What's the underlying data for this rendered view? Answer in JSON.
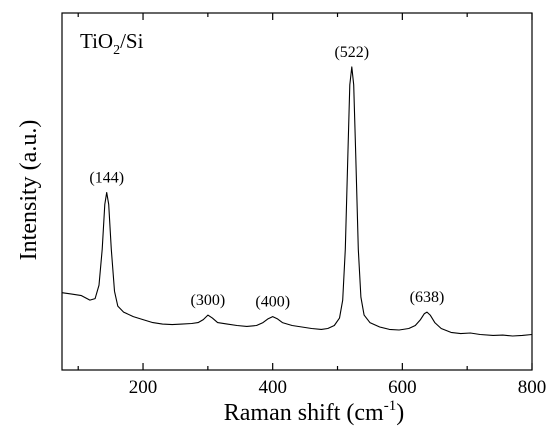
{
  "chart_data": {
    "type": "line",
    "title": "",
    "sample_label": {
      "prefix": "TiO",
      "subscript": "2",
      "suffix": "/Si"
    },
    "xlabel": {
      "text": "Raman shift (cm",
      "superscript": "-1",
      "suffix": ")"
    },
    "ylabel": "Intensity (a.u.)",
    "xlim": [
      75,
      800
    ],
    "ylim": [
      0,
      1.0
    ],
    "x_ticks": [
      200,
      400,
      600,
      800
    ],
    "x_minor_ticks": [
      100,
      300,
      500,
      700
    ],
    "y_ticks_labeled": false,
    "grid": false,
    "legend": "none",
    "series": [
      {
        "color": "#000000",
        "points": [
          [
            75,
            0.155
          ],
          [
            90,
            0.15
          ],
          [
            105,
            0.145
          ],
          [
            118,
            0.13
          ],
          [
            126,
            0.135
          ],
          [
            132,
            0.18
          ],
          [
            137,
            0.3
          ],
          [
            141,
            0.45
          ],
          [
            144,
            0.49
          ],
          [
            147,
            0.45
          ],
          [
            151,
            0.3
          ],
          [
            156,
            0.16
          ],
          [
            161,
            0.11
          ],
          [
            170,
            0.09
          ],
          [
            185,
            0.075
          ],
          [
            200,
            0.065
          ],
          [
            215,
            0.055
          ],
          [
            230,
            0.05
          ],
          [
            245,
            0.048
          ],
          [
            260,
            0.05
          ],
          [
            275,
            0.052
          ],
          [
            285,
            0.055
          ],
          [
            293,
            0.065
          ],
          [
            300,
            0.08
          ],
          [
            307,
            0.07
          ],
          [
            315,
            0.055
          ],
          [
            330,
            0.05
          ],
          [
            345,
            0.045
          ],
          [
            360,
            0.042
          ],
          [
            375,
            0.045
          ],
          [
            385,
            0.055
          ],
          [
            393,
            0.068
          ],
          [
            400,
            0.075
          ],
          [
            407,
            0.068
          ],
          [
            415,
            0.055
          ],
          [
            430,
            0.045
          ],
          [
            445,
            0.04
          ],
          [
            460,
            0.035
          ],
          [
            475,
            0.032
          ],
          [
            485,
            0.035
          ],
          [
            495,
            0.045
          ],
          [
            503,
            0.07
          ],
          [
            508,
            0.13
          ],
          [
            512,
            0.3
          ],
          [
            516,
            0.62
          ],
          [
            519,
            0.85
          ],
          [
            522,
            0.91
          ],
          [
            525,
            0.85
          ],
          [
            528,
            0.62
          ],
          [
            532,
            0.3
          ],
          [
            536,
            0.14
          ],
          [
            541,
            0.08
          ],
          [
            550,
            0.055
          ],
          [
            565,
            0.04
          ],
          [
            580,
            0.032
          ],
          [
            595,
            0.03
          ],
          [
            610,
            0.035
          ],
          [
            620,
            0.045
          ],
          [
            628,
            0.065
          ],
          [
            634,
            0.085
          ],
          [
            638,
            0.09
          ],
          [
            643,
            0.08
          ],
          [
            650,
            0.055
          ],
          [
            660,
            0.035
          ],
          [
            675,
            0.022
          ],
          [
            690,
            0.018
          ],
          [
            705,
            0.02
          ],
          [
            720,
            0.015
          ],
          [
            740,
            0.012
          ],
          [
            755,
            0.013
          ],
          [
            770,
            0.01
          ],
          [
            785,
            0.012
          ],
          [
            800,
            0.015
          ]
        ]
      }
    ],
    "annotations": [
      {
        "text": "(144)",
        "x": 144,
        "y": 0.49
      },
      {
        "text": "(300)",
        "x": 300,
        "y": 0.08
      },
      {
        "text": "(400)",
        "x": 400,
        "y": 0.075
      },
      {
        "text": "(522)",
        "x": 522,
        "y": 0.91
      },
      {
        "text": "(638)",
        "x": 638,
        "y": 0.09
      }
    ]
  }
}
